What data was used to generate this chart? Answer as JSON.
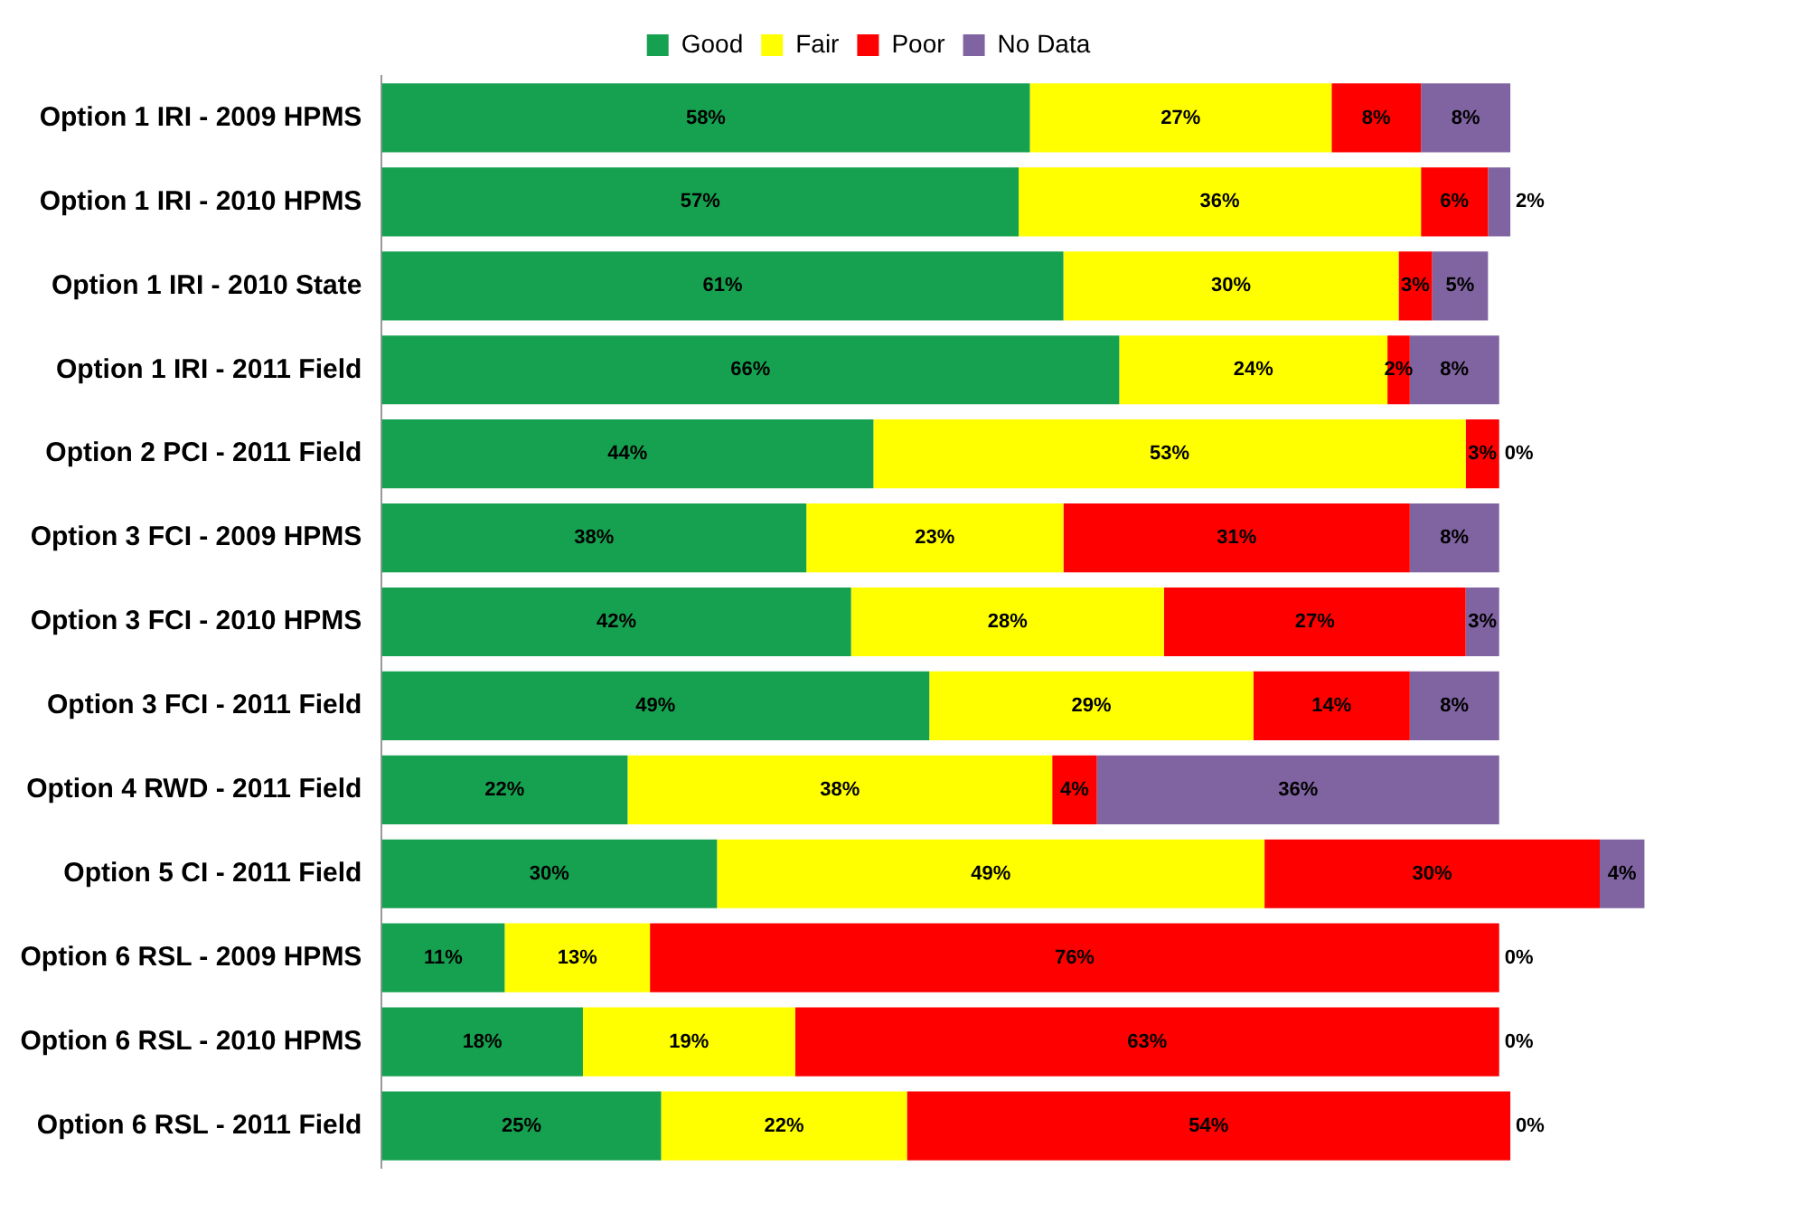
{
  "chart_data": {
    "type": "bar",
    "orientation": "horizontal",
    "stacked": true,
    "legend": "top",
    "grid": false,
    "categories": [
      "Option 1 IRI - 2009 HPMS",
      "Option 1 IRI - 2010 HPMS",
      "Option 1 IRI - 2010 State",
      "Option 1 IRI - 2011 Field",
      "Option 2 PCI - 2011 Field",
      "Option 3 FCI - 2009 HPMS",
      "Option 3 FCI - 2010 HPMS",
      "Option 3 FCI - 2011 Field",
      "Option 4 RWD - 2011 Field",
      "Option 5 CI - 2011 Field",
      "Option 6 RSL - 2009 HPMS",
      "Option 6 RSL - 2010 HPMS",
      "Option 6 RSL - 2011 Field"
    ],
    "series": [
      {
        "name": "Good",
        "color": "#16a150",
        "values": [
          58,
          57,
          61,
          66,
          44,
          38,
          42,
          49,
          22,
          30,
          11,
          18,
          25
        ],
        "value_labels": [
          "58%",
          "57%",
          "61%",
          "66%",
          "44%",
          "38%",
          "42%",
          "49%",
          "22%",
          "30%",
          "11%",
          "18%",
          "25%"
        ]
      },
      {
        "name": "Fair",
        "color": "#ffff00",
        "values": [
          27,
          36,
          30,
          24,
          53,
          23,
          28,
          29,
          38,
          49,
          13,
          19,
          22
        ],
        "value_labels": [
          "27%",
          "36%",
          "30%",
          "24%",
          "53%",
          "23%",
          "28%",
          "29%",
          "38%",
          "49%",
          "13%",
          "19%",
          "22%"
        ]
      },
      {
        "name": "Poor",
        "color": "#ff0000",
        "values": [
          8,
          6,
          3,
          2,
          3,
          31,
          27,
          14,
          4,
          30,
          76,
          63,
          54
        ],
        "value_labels": [
          "8%",
          "6%",
          "3%",
          "2%",
          "3%",
          "31%",
          "27%",
          "14%",
          "4%",
          "30%",
          "76%",
          "63%",
          "54%"
        ]
      },
      {
        "name": "No Data",
        "color": "#8064a2",
        "values": [
          8,
          2,
          5,
          8,
          0,
          8,
          3,
          8,
          36,
          4,
          0,
          0,
          0
        ],
        "value_labels": [
          "8%",
          "2%",
          "5%",
          "8%",
          "0%",
          "8%",
          "3%",
          "8%",
          "36%",
          "4%",
          "0%",
          "0%",
          "0%"
        ]
      }
    ]
  }
}
